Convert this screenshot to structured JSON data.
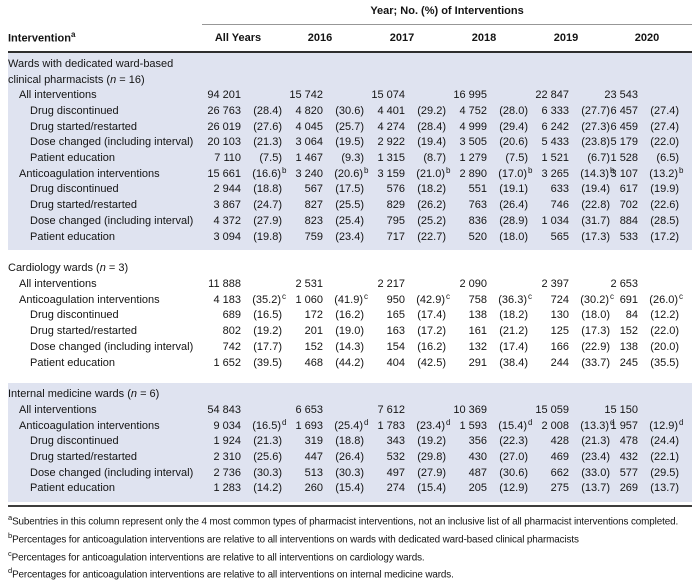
{
  "table": {
    "header": {
      "spanner": "Year; No. (%) of Interventions",
      "row_label": "Intervention",
      "row_label_sup": "a",
      "columns": [
        "All Years",
        "2016",
        "2017",
        "2018",
        "2019",
        "2020"
      ]
    },
    "colors": {
      "shaded_band": "#dfe3f0",
      "text": "#141414",
      "rule_dark": "#2e2e2e",
      "rule_light": "#979797"
    },
    "sections": [
      {
        "title": "Wards with dedicated ward-based clinical pharmacists",
        "n_var": "n",
        "n_rest": " = 16",
        "shaded": true,
        "rows": [
          {
            "label": "All interventions",
            "indent": 1,
            "cells": [
              {
                "n": "94 201"
              },
              {
                "n": "15 742"
              },
              {
                "n": "15 074"
              },
              {
                "n": "16 995"
              },
              {
                "n": "22 847"
              },
              {
                "n": "23 543"
              }
            ]
          },
          {
            "label": "Drug discontinued",
            "indent": 2,
            "cells": [
              {
                "n": "26 763",
                "p": "(28.4)"
              },
              {
                "n": "4 820",
                "p": "(30.6)"
              },
              {
                "n": "4 401",
                "p": "(29.2)"
              },
              {
                "n": "4 752",
                "p": "(28.0)"
              },
              {
                "n": "6 333",
                "p": "(27.7)"
              },
              {
                "n": "6 457",
                "p": "(27.4)"
              }
            ]
          },
          {
            "label": "Drug started/restarted",
            "indent": 2,
            "cells": [
              {
                "n": "26 019",
                "p": "(27.6)"
              },
              {
                "n": "4 045",
                "p": "(25.7)"
              },
              {
                "n": "4 274",
                "p": "(28.4)"
              },
              {
                "n": "4 999",
                "p": "(29.4)"
              },
              {
                "n": "6 242",
                "p": "(27.3)"
              },
              {
                "n": "6 459",
                "p": "(27.4)"
              }
            ]
          },
          {
            "label": "Dose changed (including interval)",
            "indent": 2,
            "cells": [
              {
                "n": "20 103",
                "p": "(21.3)"
              },
              {
                "n": "3 064",
                "p": "(19.5)"
              },
              {
                "n": "2 922",
                "p": "(19.4)"
              },
              {
                "n": "3 505",
                "p": "(20.6)"
              },
              {
                "n": "5 433",
                "p": "(23.8)"
              },
              {
                "n": "5 179",
                "p": "(22.0)"
              }
            ]
          },
          {
            "label": "Patient education",
            "indent": 2,
            "cells": [
              {
                "n": "7 110",
                "p": "(7.5)"
              },
              {
                "n": "1 467",
                "p": "(9.3)"
              },
              {
                "n": "1 315",
                "p": "(8.7)"
              },
              {
                "n": "1 279",
                "p": "(7.5)"
              },
              {
                "n": "1 521",
                "p": "(6.7)"
              },
              {
                "n": "1 528",
                "p": "(6.5)"
              }
            ]
          },
          {
            "label": "Anticoagulation interventions",
            "indent": 1,
            "cells": [
              {
                "n": "15 661",
                "p": "(16.6)",
                "s": "b"
              },
              {
                "n": "3 240",
                "p": "(20.6)",
                "s": "b"
              },
              {
                "n": "3 159",
                "p": "(21.0)",
                "s": "b"
              },
              {
                "n": "2 890",
                "p": "(17.0)",
                "s": "b"
              },
              {
                "n": "3 265",
                "p": "(14.3)",
                "s": "b"
              },
              {
                "n": "3 107",
                "p": "(13.2)",
                "s": "b"
              }
            ]
          },
          {
            "label": "Drug discontinued",
            "indent": 2,
            "cells": [
              {
                "n": "2 944",
                "p": "(18.8)"
              },
              {
                "n": "567",
                "p": "(17.5)"
              },
              {
                "n": "576",
                "p": "(18.2)"
              },
              {
                "n": "551",
                "p": "(19.1)"
              },
              {
                "n": "633",
                "p": "(19.4)"
              },
              {
                "n": "617",
                "p": "(19.9)"
              }
            ]
          },
          {
            "label": "Drug started/restarted",
            "indent": 2,
            "cells": [
              {
                "n": "3 867",
                "p": "(24.7)"
              },
              {
                "n": "827",
                "p": "(25.5)"
              },
              {
                "n": "829",
                "p": "(26.2)"
              },
              {
                "n": "763",
                "p": "(26.4)"
              },
              {
                "n": "746",
                "p": "(22.8)"
              },
              {
                "n": "702",
                "p": "(22.6)"
              }
            ]
          },
          {
            "label": "Dose changed (including interval)",
            "indent": 2,
            "cells": [
              {
                "n": "4 372",
                "p": "(27.9)"
              },
              {
                "n": "823",
                "p": "(25.4)"
              },
              {
                "n": "795",
                "p": "(25.2)"
              },
              {
                "n": "836",
                "p": "(28.9)"
              },
              {
                "n": "1 034",
                "p": "(31.7)"
              },
              {
                "n": "884",
                "p": "(28.5)"
              }
            ]
          },
          {
            "label": "Patient education",
            "indent": 2,
            "cells": [
              {
                "n": "3 094",
                "p": "(19.8)"
              },
              {
                "n": "759",
                "p": "(23.4)"
              },
              {
                "n": "717",
                "p": "(22.7)"
              },
              {
                "n": "520",
                "p": "(18.0)"
              },
              {
                "n": "565",
                "p": "(17.3)"
              },
              {
                "n": "533",
                "p": "(17.2)"
              }
            ]
          }
        ]
      },
      {
        "title": "Cardiology wards",
        "n_var": "n",
        "n_rest": " = 3",
        "shaded": false,
        "rows": [
          {
            "label": "All interventions",
            "indent": 1,
            "cells": [
              {
                "n": "11 888"
              },
              {
                "n": "2 531"
              },
              {
                "n": "2 217"
              },
              {
                "n": "2 090"
              },
              {
                "n": "2 397"
              },
              {
                "n": "2 653"
              }
            ]
          },
          {
            "label": "Anticoagulation interventions",
            "indent": 1,
            "cells": [
              {
                "n": "4 183",
                "p": "(35.2)",
                "s": "c"
              },
              {
                "n": "1 060",
                "p": "(41.9)",
                "s": "c"
              },
              {
                "n": "950",
                "p": "(42.9)",
                "s": "c"
              },
              {
                "n": "758",
                "p": "(36.3)",
                "s": "c"
              },
              {
                "n": "724",
                "p": "(30.2)",
                "s": "c"
              },
              {
                "n": "691",
                "p": "(26.0)",
                "s": "c"
              }
            ]
          },
          {
            "label": "Drug discontinued",
            "indent": 2,
            "cells": [
              {
                "n": "689",
                "p": "(16.5)"
              },
              {
                "n": "172",
                "p": "(16.2)"
              },
              {
                "n": "165",
                "p": "(17.4)"
              },
              {
                "n": "138",
                "p": "(18.2)"
              },
              {
                "n": "130",
                "p": "(18.0)"
              },
              {
                "n": "84",
                "p": "(12.2)"
              }
            ]
          },
          {
            "label": "Drug started/restarted",
            "indent": 2,
            "cells": [
              {
                "n": "802",
                "p": "(19.2)"
              },
              {
                "n": "201",
                "p": "(19.0)"
              },
              {
                "n": "163",
                "p": "(17.2)"
              },
              {
                "n": "161",
                "p": "(21.2)"
              },
              {
                "n": "125",
                "p": "(17.3)"
              },
              {
                "n": "152",
                "p": "(22.0)"
              }
            ]
          },
          {
            "label": "Dose changed (including interval)",
            "indent": 2,
            "cells": [
              {
                "n": "742",
                "p": "(17.7)"
              },
              {
                "n": "152",
                "p": "(14.3)"
              },
              {
                "n": "154",
                "p": "(16.2)"
              },
              {
                "n": "132",
                "p": "(17.4)"
              },
              {
                "n": "166",
                "p": "(22.9)"
              },
              {
                "n": "138",
                "p": "(20.0)"
              }
            ]
          },
          {
            "label": "Patient education",
            "indent": 2,
            "cells": [
              {
                "n": "1 652",
                "p": "(39.5)"
              },
              {
                "n": "468",
                "p": "(44.2)"
              },
              {
                "n": "404",
                "p": "(42.5)"
              },
              {
                "n": "291",
                "p": "(38.4)"
              },
              {
                "n": "244",
                "p": "(33.7)"
              },
              {
                "n": "245",
                "p": "(35.5)"
              }
            ]
          }
        ]
      },
      {
        "title": "Internal medicine wards",
        "n_var": "n",
        "n_rest": " = 6",
        "shaded": true,
        "rows": [
          {
            "label": "All interventions",
            "indent": 1,
            "cells": [
              {
                "n": "54 843"
              },
              {
                "n": "6 653"
              },
              {
                "n": "7 612"
              },
              {
                "n": "10 369"
              },
              {
                "n": "15 059"
              },
              {
                "n": "15 150"
              }
            ]
          },
          {
            "label": "Anticoagulation interventions",
            "indent": 1,
            "cells": [
              {
                "n": "9 034",
                "p": "(16.5)",
                "s": "d"
              },
              {
                "n": "1 693",
                "p": "(25.4)",
                "s": "d"
              },
              {
                "n": "1 783",
                "p": "(23.4)",
                "s": "d"
              },
              {
                "n": "1 593",
                "p": "(15.4)",
                "s": "d"
              },
              {
                "n": "2 008",
                "p": "(13.3)",
                "s": "d"
              },
              {
                "n": "1 957",
                "p": "(12.9)",
                "s": "d"
              }
            ]
          },
          {
            "label": "Drug discontinued",
            "indent": 2,
            "cells": [
              {
                "n": "1 924",
                "p": "(21.3)"
              },
              {
                "n": "319",
                "p": "(18.8)"
              },
              {
                "n": "343",
                "p": "(19.2)"
              },
              {
                "n": "356",
                "p": "(22.3)"
              },
              {
                "n": "428",
                "p": "(21.3)"
              },
              {
                "n": "478",
                "p": "(24.4)"
              }
            ]
          },
          {
            "label": "Drug started/restarted",
            "indent": 2,
            "cells": [
              {
                "n": "2 310",
                "p": "(25.6)"
              },
              {
                "n": "447",
                "p": "(26.4)"
              },
              {
                "n": "532",
                "p": "(29.8)"
              },
              {
                "n": "430",
                "p": "(27.0)"
              },
              {
                "n": "469",
                "p": "(23.4)"
              },
              {
                "n": "432",
                "p": "(22.1)"
              }
            ]
          },
          {
            "label": "Dose changed (including interval)",
            "indent": 2,
            "cells": [
              {
                "n": "2 736",
                "p": "(30.3)"
              },
              {
                "n": "513",
                "p": "(30.3)"
              },
              {
                "n": "497",
                "p": "(27.9)"
              },
              {
                "n": "487",
                "p": "(30.6)"
              },
              {
                "n": "662",
                "p": "(33.0)"
              },
              {
                "n": "577",
                "p": "(29.5)"
              }
            ]
          },
          {
            "label": "Patient education",
            "indent": 2,
            "cells": [
              {
                "n": "1 283",
                "p": "(14.2)"
              },
              {
                "n": "260",
                "p": "(15.4)"
              },
              {
                "n": "274",
                "p": "(15.4)"
              },
              {
                "n": "205",
                "p": "(12.9)"
              },
              {
                "n": "275",
                "p": "(13.7)"
              },
              {
                "n": "269",
                "p": "(13.7)"
              }
            ]
          }
        ]
      }
    ],
    "footnotes": [
      {
        "sup": "a",
        "text": "Subentries in this column represent only the 4 most common types of pharmacist interventions, not an inclusive list of all pharmacist interventions completed."
      },
      {
        "sup": "b",
        "text": "Percentages for anticoagulation interventions are relative to all interventions on wards with dedicated ward-based clinical pharmacists"
      },
      {
        "sup": "c",
        "text": "Percentages for anticoagulation interventions are relative to all interventions on cardiology wards."
      },
      {
        "sup": "d",
        "text": "Percentages for anticoagulation interventions are relative to all interventions on internal medicine wards."
      }
    ]
  }
}
